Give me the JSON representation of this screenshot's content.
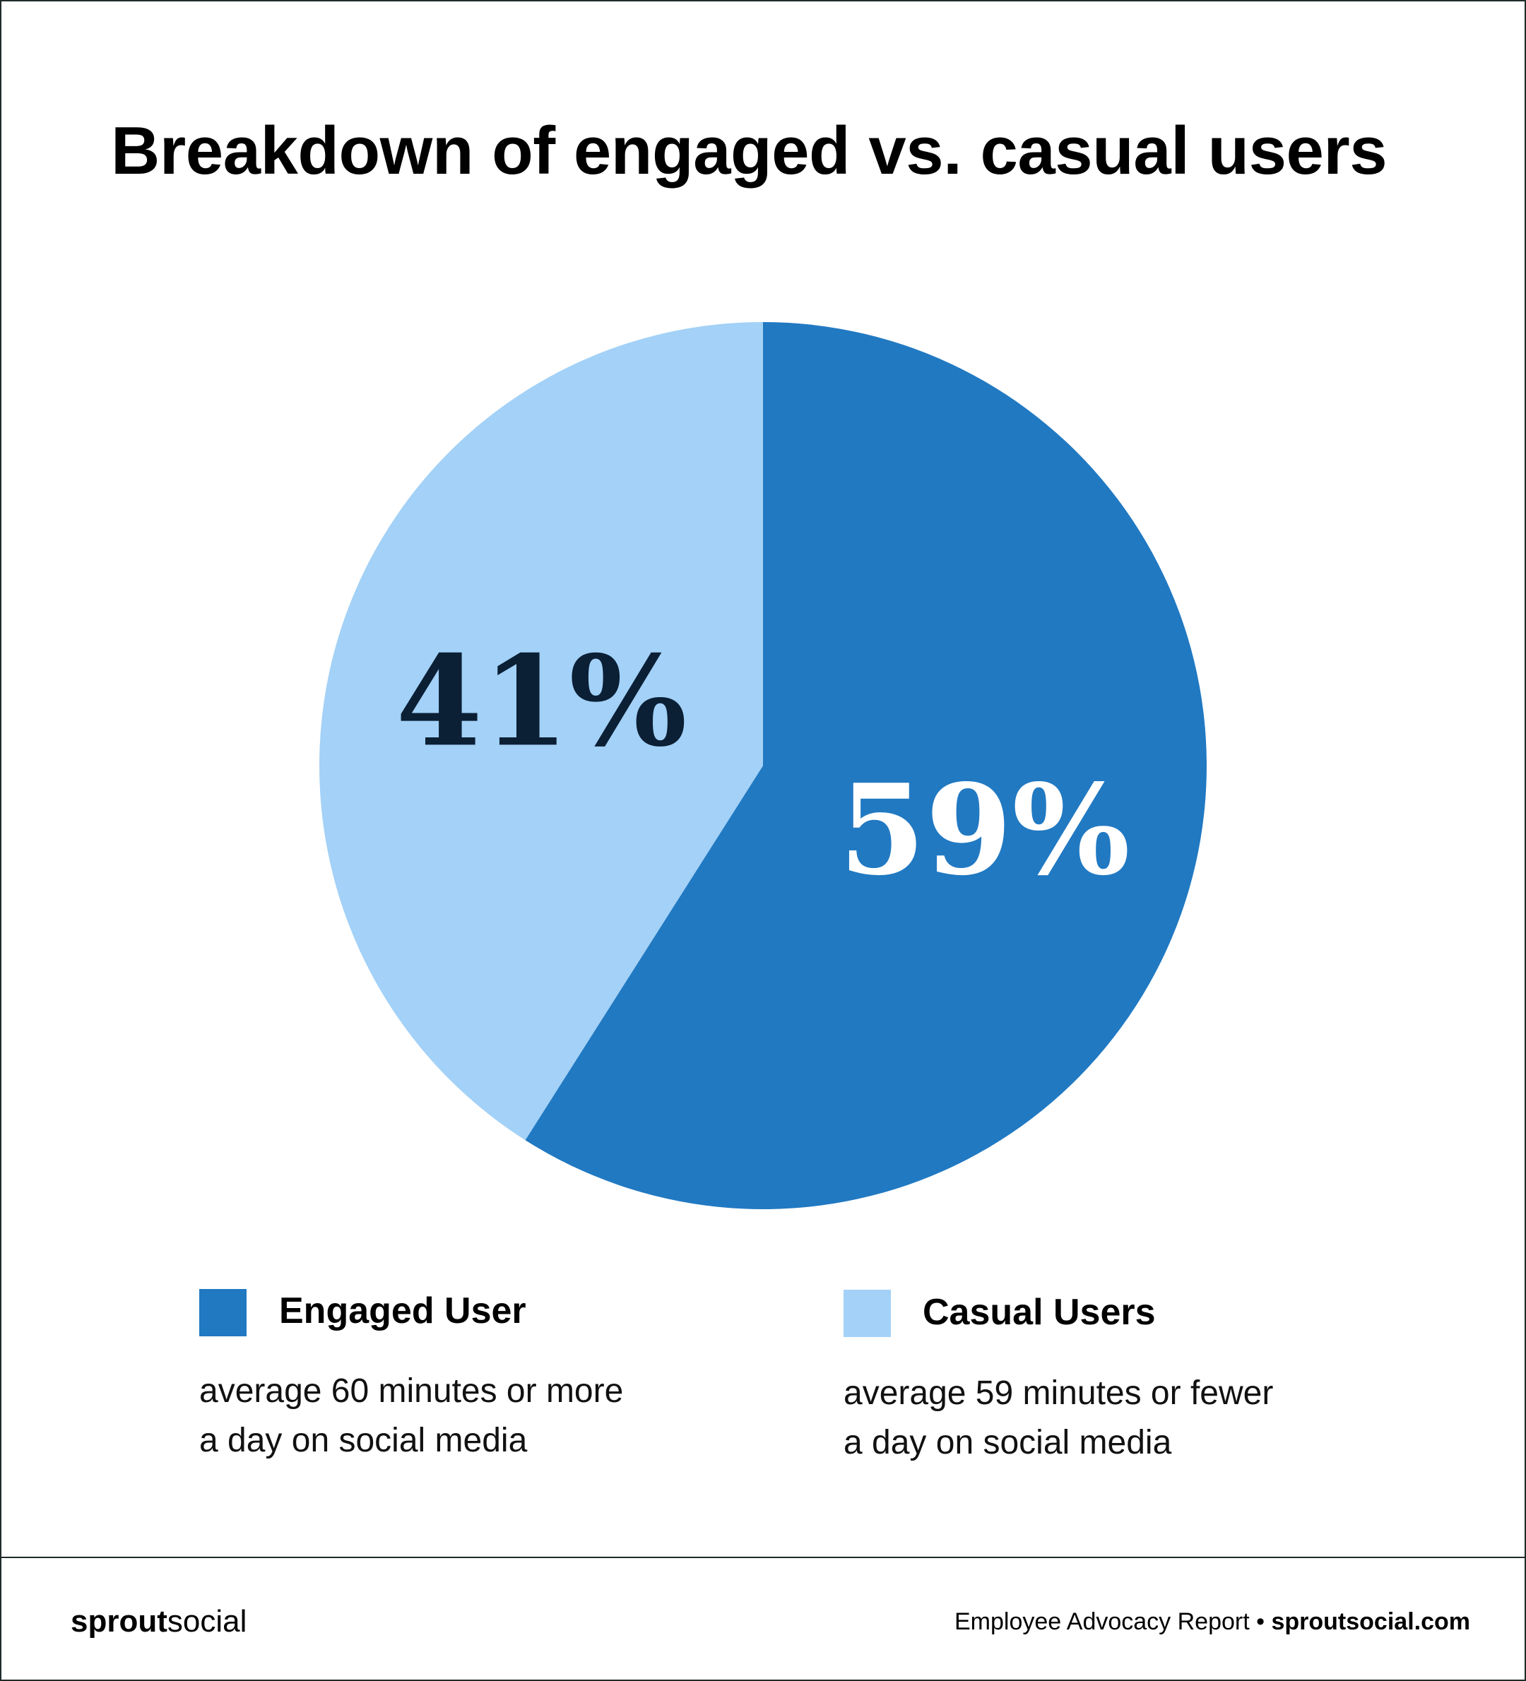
{
  "chart_data": {
    "type": "pie",
    "title": "Breakdown of engaged vs. casual users",
    "slices": [
      {
        "label": "Engaged User",
        "value": 59,
        "display": "59%",
        "color": "#2179c2",
        "label_color": "#ffffff"
      },
      {
        "label": "Casual Users",
        "value": 41,
        "display": "41%",
        "color": "#a3d1f7",
        "label_color": "#0b1f35"
      }
    ]
  },
  "legend": [
    {
      "label": "Engaged User",
      "description_line1": "average 60 minutes or more",
      "description_line2": "a day on social media",
      "color": "#2179c2"
    },
    {
      "label": "Casual Users",
      "description_line1": "average 59 minutes or fewer",
      "description_line2": "a day on social media",
      "color": "#a3d1f7"
    }
  ],
  "footer": {
    "brand_bold": "sprout",
    "brand_light": "social",
    "report": "Employee Advocacy Report",
    "separator": "•",
    "site": "sproutsocial.com"
  }
}
